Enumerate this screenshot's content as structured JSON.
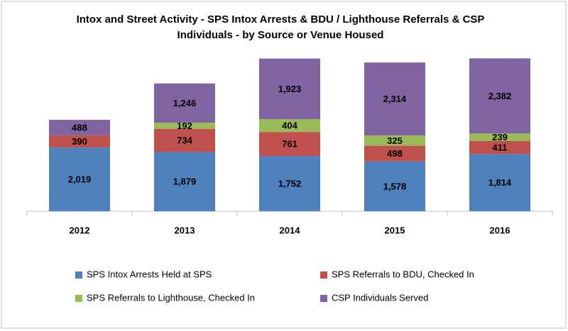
{
  "chart_data": {
    "type": "stacked_bar",
    "title": [
      "Intox and Street Activity - SPS Intox Arrests & BDU / Lighthouse Referrals & CSP",
      "Individuals - by Source or Venue Housed"
    ],
    "categories": [
      "2012",
      "2013",
      "2014",
      "2015",
      "2016"
    ],
    "ylim": [
      0,
      6000
    ],
    "legend": "bottom",
    "series": [
      {
        "name": "SPS Intox Arrests Held at SPS",
        "color": "#4f81bd",
        "values": [
          2019,
          1879,
          1752,
          1578,
          1814
        ],
        "value_labels": [
          "2,019",
          "1,879",
          "1,752",
          "1,578",
          "1,814"
        ]
      },
      {
        "name": "SPS Referrals to BDU, Checked In",
        "color": "#c0504d",
        "values": [
          390,
          734,
          761,
          498,
          411
        ]
      },
      {
        "name": "SPS Referrals to Lighthouse, Checked In",
        "color": "#9bbb59",
        "values": [
          null,
          192,
          404,
          325,
          239
        ]
      },
      {
        "name": "CSP Individuals Served",
        "color": "#8064a2",
        "values": [
          488,
          1246,
          1923,
          2314,
          2382
        ],
        "value_labels": [
          "488",
          "1,246",
          "1,923",
          "2,314",
          "2,382"
        ]
      }
    ]
  }
}
